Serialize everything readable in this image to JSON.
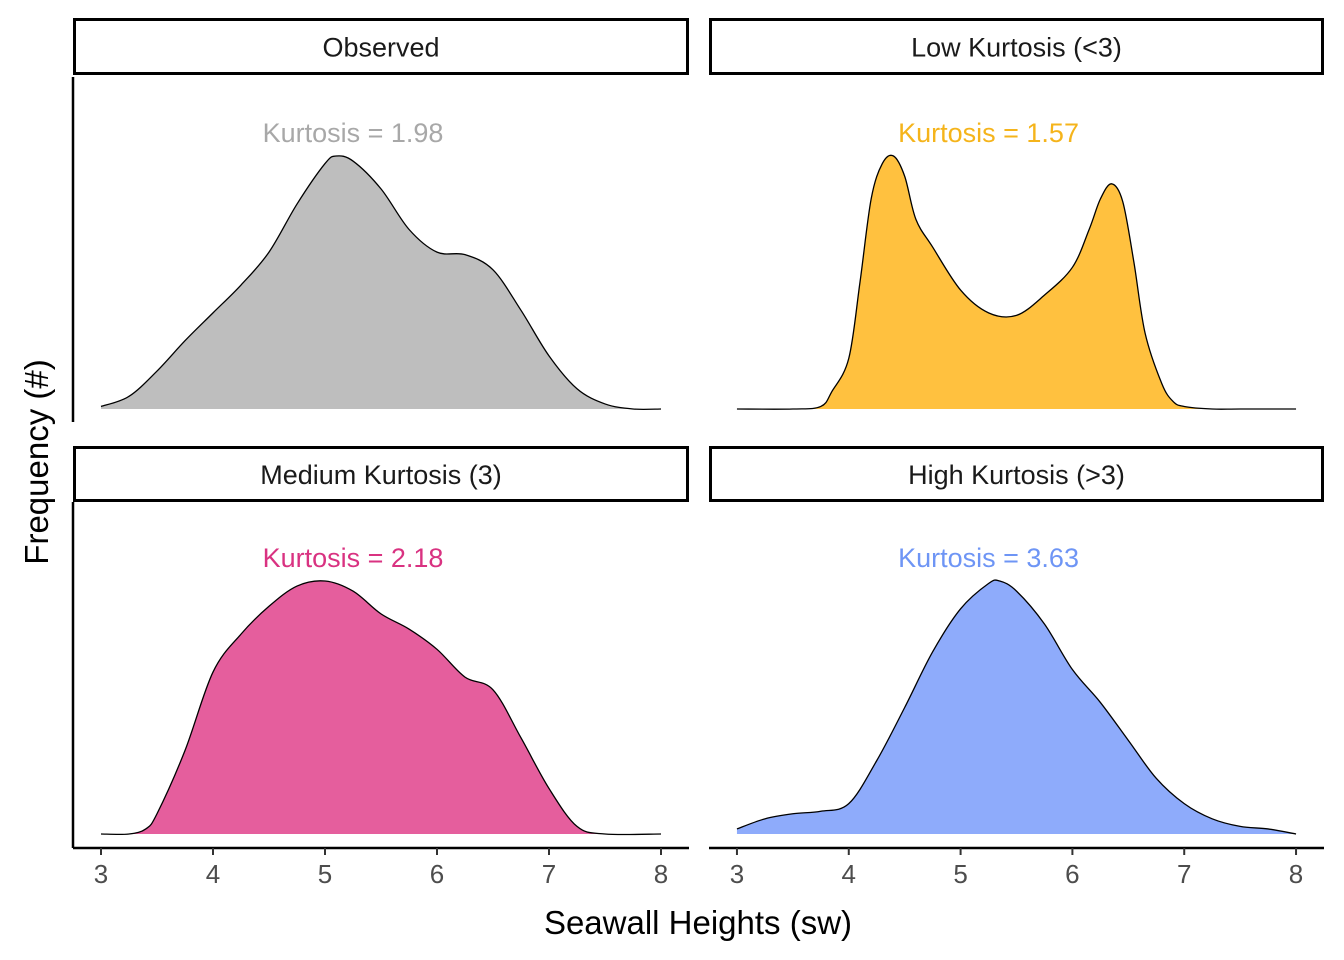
{
  "chart_data": {
    "type": "area",
    "xlabel": "Seawall Heights (sw)",
    "ylabel": "Frequency (#)",
    "xlim": [
      2.75,
      8.25
    ],
    "x_ticks": [
      "3",
      "4",
      "5",
      "6",
      "7",
      "8"
    ],
    "x_tick_values": [
      3,
      4,
      5,
      6,
      7,
      8
    ],
    "y_ticks_shown": false,
    "panels": [
      {
        "strip": "Observed",
        "annotation": "Kurtosis = 1.98",
        "annotation_x": 5.25,
        "kurtosis": 1.98,
        "fill_color": "#bebebe",
        "text_color": "#a8a8a8",
        "x": [
          3.0,
          3.25,
          3.5,
          3.75,
          4.0,
          4.25,
          4.5,
          4.75,
          5.0,
          5.1,
          5.25,
          5.5,
          5.75,
          6.0,
          6.25,
          6.5,
          6.75,
          7.0,
          7.25,
          7.5,
          7.75,
          8.0
        ],
        "density": [
          0.01,
          0.05,
          0.15,
          0.27,
          0.38,
          0.49,
          0.62,
          0.81,
          0.97,
          1.0,
          0.98,
          0.87,
          0.71,
          0.62,
          0.61,
          0.55,
          0.39,
          0.21,
          0.08,
          0.02,
          0.0,
          0.0
        ]
      },
      {
        "strip": "Low Kurtosis (<3)",
        "annotation": "Kurtosis = 1.57",
        "annotation_x": 5.25,
        "kurtosis": 1.57,
        "fill_color": "#ffc13f",
        "text_color": "#f5b41b",
        "x": [
          3.0,
          3.5,
          3.75,
          3.85,
          4.0,
          4.1,
          4.2,
          4.3,
          4.4,
          4.5,
          4.6,
          4.75,
          5.0,
          5.25,
          5.5,
          5.75,
          6.0,
          6.15,
          6.25,
          6.35,
          6.45,
          6.55,
          6.65,
          6.8,
          6.9,
          7.0,
          7.25,
          7.5,
          8.0
        ],
        "density": [
          0.0,
          0.0,
          0.01,
          0.07,
          0.2,
          0.5,
          0.83,
          0.97,
          1.0,
          0.92,
          0.75,
          0.64,
          0.47,
          0.38,
          0.37,
          0.45,
          0.56,
          0.71,
          0.83,
          0.89,
          0.82,
          0.58,
          0.3,
          0.1,
          0.03,
          0.01,
          0.0,
          0.0,
          0.0
        ]
      },
      {
        "strip": "Medium Kurtosis (3)",
        "annotation": "Kurtosis = 2.18",
        "annotation_x": 5.25,
        "kurtosis": 2.18,
        "fill_color": "#e55e9d",
        "text_color": "#d93281",
        "x": [
          3.0,
          3.25,
          3.4,
          3.5,
          3.75,
          4.0,
          4.25,
          4.5,
          4.75,
          5.0,
          5.25,
          5.5,
          5.75,
          6.0,
          6.25,
          6.5,
          6.75,
          7.0,
          7.25,
          7.5,
          8.0
        ],
        "density": [
          0.0,
          0.0,
          0.02,
          0.08,
          0.33,
          0.64,
          0.79,
          0.9,
          0.98,
          1.0,
          0.96,
          0.87,
          0.81,
          0.73,
          0.62,
          0.57,
          0.38,
          0.18,
          0.03,
          0.0,
          0.0
        ]
      },
      {
        "strip": "High Kurtosis (>3)",
        "annotation": "Kurtosis = 3.63",
        "annotation_x": 5.25,
        "kurtosis": 3.63,
        "fill_color": "#8eabfb",
        "text_color": "#6e95f5",
        "x": [
          3.0,
          3.25,
          3.5,
          3.75,
          4.0,
          4.25,
          4.5,
          4.75,
          5.0,
          5.25,
          5.35,
          5.5,
          5.75,
          6.0,
          6.25,
          6.5,
          6.75,
          7.0,
          7.25,
          7.5,
          7.75,
          8.0
        ],
        "density": [
          0.02,
          0.06,
          0.08,
          0.09,
          0.12,
          0.29,
          0.5,
          0.72,
          0.89,
          0.99,
          1.0,
          0.96,
          0.83,
          0.65,
          0.52,
          0.37,
          0.22,
          0.12,
          0.06,
          0.03,
          0.02,
          0.0
        ]
      }
    ]
  }
}
